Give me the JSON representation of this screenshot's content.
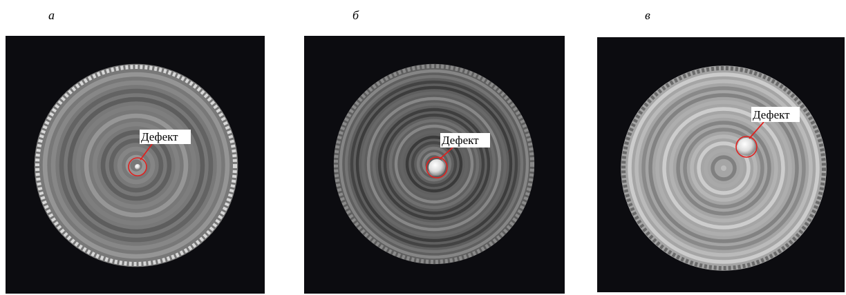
{
  "panels": [
    {
      "label": "а",
      "annotation": "Дефект"
    },
    {
      "label": "б",
      "annotation": "Дефект"
    },
    {
      "label": "в",
      "annotation": "Дефект"
    }
  ]
}
